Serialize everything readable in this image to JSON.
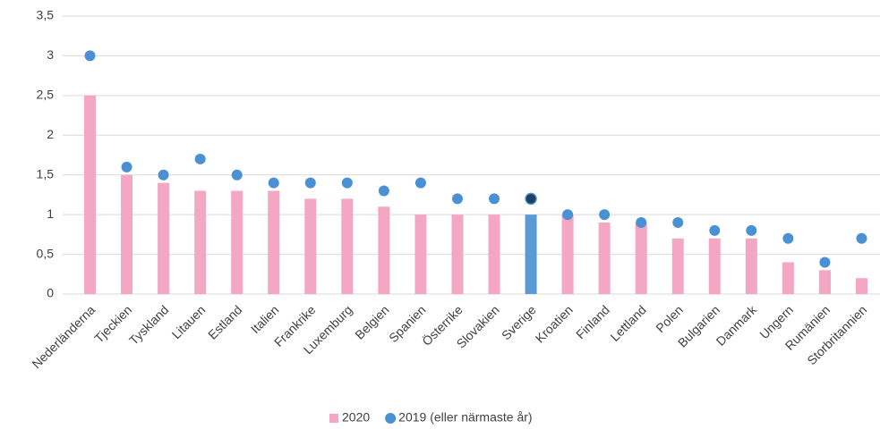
{
  "chart_data": {
    "type": "bar",
    "categories": [
      "Nederländerna",
      "Tjeckien",
      "Tyskland",
      "Litauen",
      "Estland",
      "Italien",
      "Frankrike",
      "Luxemburg",
      "Belgien",
      "Spanien",
      "Österrike",
      "Slovakien",
      "Sverige",
      "Kroatien",
      "Finland",
      "Lettland",
      "Polen",
      "Bulgarien",
      "Danmark",
      "Ungern",
      "Rumänien",
      "Storbritannien"
    ],
    "series": [
      {
        "name": "2020",
        "type": "bar",
        "color": "#f4a7c3",
        "highlight_color": "#5b9bd5",
        "values": [
          2.5,
          1.5,
          1.4,
          1.3,
          1.3,
          1.3,
          1.2,
          1.2,
          1.1,
          1.0,
          1.0,
          1.0,
          1.0,
          1.0,
          0.9,
          0.9,
          0.7,
          0.7,
          0.7,
          0.4,
          0.3,
          0.2
        ]
      },
      {
        "name": "2019 (eller närmaste år)",
        "type": "scatter",
        "color": "#4a90d4",
        "highlight_color": "#1f3f60",
        "values": [
          3.0,
          1.6,
          1.5,
          1.7,
          1.5,
          1.4,
          1.4,
          1.4,
          1.3,
          1.4,
          1.2,
          1.2,
          1.2,
          1.0,
          1.0,
          0.9,
          0.9,
          0.8,
          0.8,
          0.7,
          0.4,
          0.7
        ]
      }
    ],
    "highlight": "Sverige",
    "ylim": [
      0,
      3.5
    ],
    "yticks": [
      0,
      {
        "value": 0.5,
        "label": "0,5"
      },
      1,
      {
        "value": 1.5,
        "label": "1,5"
      },
      2,
      {
        "value": 2.5,
        "label": "2,5"
      },
      3,
      {
        "value": 3.5,
        "label": "3,5"
      }
    ],
    "grid": true,
    "legend": "bottom"
  }
}
